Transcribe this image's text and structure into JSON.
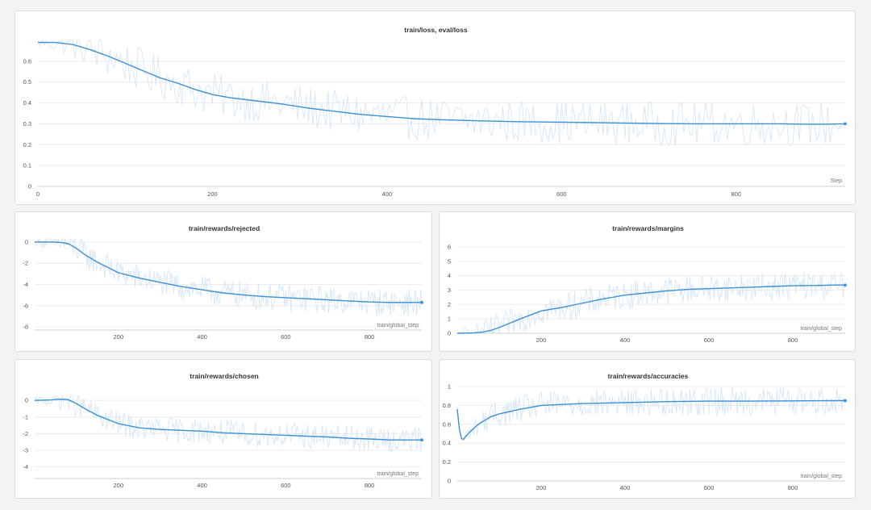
{
  "colors": {
    "smooth": "#3d8fd6",
    "raw": "#d5e7f6",
    "grid": "#ececec",
    "background": "#f3f3f3"
  },
  "chart_data": [
    {
      "id": "loss",
      "type": "line",
      "title": "train/loss, eval/loss",
      "xlabel": "Step",
      "ylabel": "",
      "xlim": [
        0,
        925
      ],
      "ylim": [
        0,
        0.7
      ],
      "xticks": [
        0,
        200,
        400,
        600,
        800
      ],
      "yticks": [
        0,
        0.1,
        0.2,
        0.3,
        0.4,
        0.5,
        0.6
      ],
      "ytick_labels": [
        "0",
        "0.1",
        "0.2",
        "0.3",
        "0.4",
        "0.5",
        "0.6"
      ],
      "series": [
        {
          "name": "train/loss (smoothed)",
          "x": [
            0,
            20,
            40,
            60,
            80,
            100,
            120,
            140,
            160,
            180,
            200,
            220,
            250,
            280,
            310,
            340,
            370,
            400,
            430,
            460,
            500,
            550,
            600,
            650,
            700,
            750,
            800,
            850,
            880,
            900,
            925
          ],
          "values": [
            0.69,
            0.69,
            0.68,
            0.655,
            0.625,
            0.59,
            0.555,
            0.52,
            0.495,
            0.465,
            0.44,
            0.425,
            0.41,
            0.395,
            0.375,
            0.36,
            0.345,
            0.335,
            0.325,
            0.32,
            0.315,
            0.31,
            0.308,
            0.305,
            0.302,
            0.3,
            0.3,
            0.3,
            0.298,
            0.298,
            0.3
          ]
        }
      ]
    },
    {
      "id": "rejected",
      "type": "line",
      "title": "train/rewards/rejected",
      "xlabel": "train/global_step",
      "ylabel": "",
      "xlim": [
        0,
        925
      ],
      "ylim": [
        -8.3,
        0.3
      ],
      "xticks": [
        200,
        400,
        600,
        800
      ],
      "yticks": [
        0,
        -2,
        -4,
        -6,
        -8
      ],
      "ytick_labels": [
        "0",
        "-2",
        "-4",
        "-6",
        "-8"
      ],
      "series": [
        {
          "name": "train/rewards/rejected (smoothed)",
          "x": [
            0,
            40,
            60,
            80,
            100,
            120,
            150,
            200,
            250,
            300,
            350,
            400,
            450,
            500,
            550,
            600,
            650,
            700,
            750,
            800,
            850,
            900,
            925
          ],
          "values": [
            0,
            0,
            -0.03,
            -0.15,
            -0.6,
            -1.2,
            -1.9,
            -2.9,
            -3.4,
            -3.8,
            -4.2,
            -4.5,
            -4.8,
            -5.0,
            -5.15,
            -5.25,
            -5.35,
            -5.45,
            -5.55,
            -5.65,
            -5.7,
            -5.7,
            -5.7
          ]
        }
      ]
    },
    {
      "id": "margins",
      "type": "line",
      "title": "train/rewards/margins",
      "xlabel": "train/global_step",
      "ylabel": "",
      "xlim": [
        0,
        925
      ],
      "ylim": [
        0,
        6.5
      ],
      "xticks": [
        200,
        400,
        600,
        800
      ],
      "yticks": [
        0,
        1,
        2,
        3,
        4,
        5,
        6
      ],
      "ytick_labels": [
        "0",
        "1",
        "2",
        "3",
        "4",
        "5",
        "6"
      ],
      "series": [
        {
          "name": "train/rewards/margins (smoothed)",
          "x": [
            0,
            40,
            60,
            80,
            100,
            150,
            200,
            250,
            300,
            350,
            400,
            450,
            500,
            550,
            600,
            650,
            700,
            750,
            800,
            850,
            900,
            925
          ],
          "values": [
            0,
            0.02,
            0.08,
            0.2,
            0.4,
            1.0,
            1.55,
            1.8,
            2.1,
            2.4,
            2.65,
            2.8,
            2.95,
            3.05,
            3.1,
            3.15,
            3.2,
            3.25,
            3.3,
            3.32,
            3.35,
            3.35
          ]
        }
      ]
    },
    {
      "id": "chosen",
      "type": "line",
      "title": "train/rewards/chosen",
      "xlabel": "train/global_step",
      "ylabel": "",
      "xlim": [
        0,
        925
      ],
      "ylim": [
        -4.7,
        0.3
      ],
      "xticks": [
        200,
        400,
        600,
        800
      ],
      "yticks": [
        0,
        -1,
        -2,
        -3,
        -4
      ],
      "ytick_labels": [
        "0",
        "-1",
        "-2",
        "-3",
        "-4"
      ],
      "series": [
        {
          "name": "train/rewards/chosen (smoothed)",
          "x": [
            0,
            40,
            60,
            80,
            100,
            120,
            150,
            200,
            250,
            300,
            350,
            400,
            450,
            500,
            550,
            600,
            650,
            700,
            750,
            800,
            850,
            900,
            925
          ],
          "values": [
            0,
            0.03,
            0.07,
            0.05,
            -0.2,
            -0.5,
            -0.9,
            -1.4,
            -1.65,
            -1.75,
            -1.8,
            -1.85,
            -1.95,
            -2.0,
            -2.05,
            -2.1,
            -2.15,
            -2.2,
            -2.28,
            -2.32,
            -2.38,
            -2.38,
            -2.38
          ]
        }
      ]
    },
    {
      "id": "accuracies",
      "type": "line",
      "title": "train/rewards/accuracies",
      "xlabel": "train/global_step",
      "ylabel": "",
      "xlim": [
        0,
        925
      ],
      "ylim": [
        0,
        1
      ],
      "xticks": [
        200,
        400,
        600,
        800
      ],
      "yticks": [
        0,
        0.2,
        0.4,
        0.6,
        0.8,
        1
      ],
      "ytick_labels": [
        "0",
        "0.2",
        "0.4",
        "0.6",
        "0.8",
        "1"
      ],
      "series": [
        {
          "name": "train/rewards/accuracies (smoothed)",
          "x": [
            0,
            5,
            10,
            15,
            20,
            30,
            50,
            80,
            100,
            150,
            200,
            250,
            300,
            400,
            500,
            600,
            700,
            800,
            900,
            925
          ],
          "values": [
            0.76,
            0.55,
            0.45,
            0.44,
            0.47,
            0.52,
            0.6,
            0.68,
            0.71,
            0.76,
            0.8,
            0.81,
            0.82,
            0.83,
            0.84,
            0.845,
            0.845,
            0.848,
            0.85,
            0.85
          ]
        }
      ]
    }
  ]
}
